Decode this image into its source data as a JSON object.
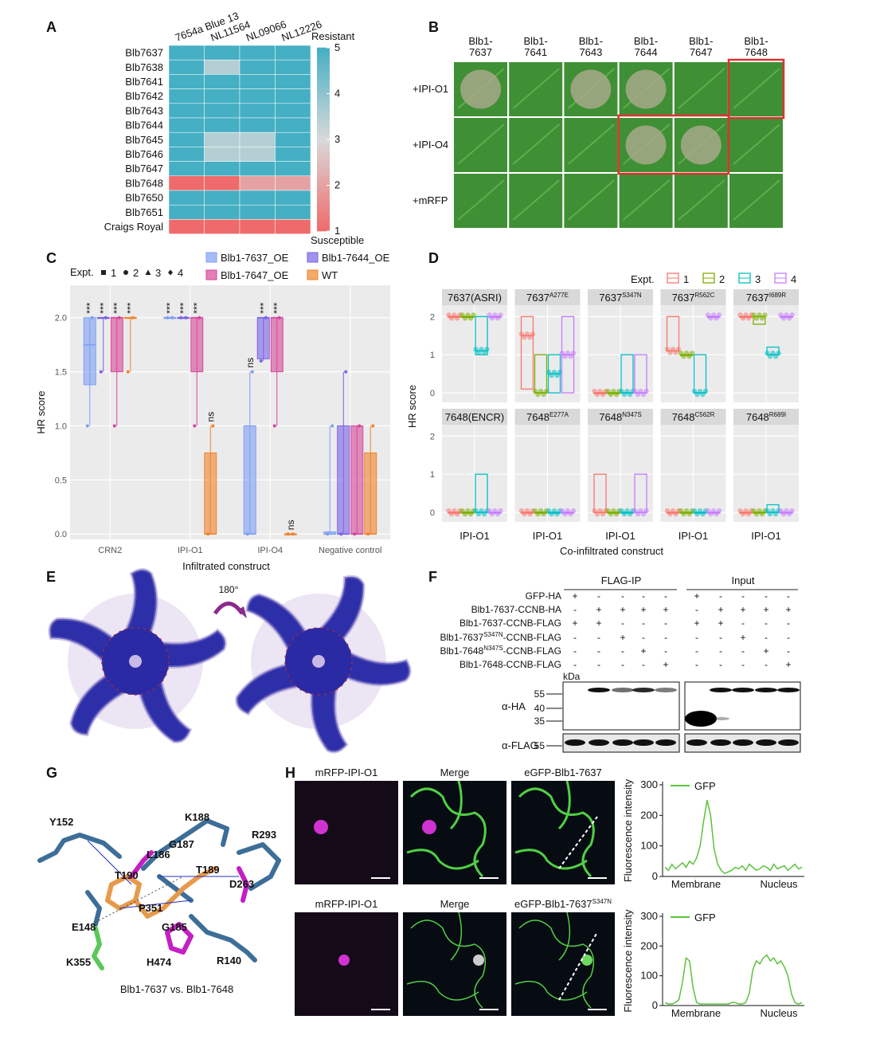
{
  "panels": {
    "A": {
      "label": "A",
      "columns": [
        "7654a Blue 13",
        "NL11564",
        "NL09066",
        "NL12226"
      ],
      "rows": [
        "Blb7637",
        "Blb7638",
        "Blb7641",
        "Blb7642",
        "Blb7643",
        "Blb7644",
        "Blb7645",
        "Blb7646",
        "Blb7647",
        "Blb7648",
        "Blb7650",
        "Blb7651",
        "Craigs Royal"
      ],
      "scores": [
        [
          5,
          5,
          5,
          5
        ],
        [
          5,
          3.5,
          5,
          5
        ],
        [
          5,
          5,
          5,
          5
        ],
        [
          5,
          5,
          5,
          5
        ],
        [
          5,
          5,
          5,
          5
        ],
        [
          5,
          5,
          5,
          5
        ],
        [
          5,
          3.5,
          3.5,
          5
        ],
        [
          5,
          3.5,
          3.5,
          5
        ],
        [
          5,
          5,
          5,
          5
        ],
        [
          1,
          1,
          2,
          2
        ],
        [
          5,
          5,
          5,
          5
        ],
        [
          5,
          5,
          5,
          5
        ],
        [
          1,
          1,
          1,
          1
        ]
      ],
      "legend": {
        "top": "Resistant",
        "bottom": "Susceptible",
        "lim": [
          1,
          5
        ],
        "ticks": [
          5,
          4,
          3,
          2,
          1
        ],
        "colors": {
          "low": "#ef6a6a",
          "mid": "#d9d9d9",
          "high": "#45afc4"
        }
      }
    },
    "B": {
      "label": "B",
      "columns": [
        [
          "Blb1-",
          "7637"
        ],
        [
          "Blb1-",
          "7641"
        ],
        [
          "Blb1-",
          "7643"
        ],
        [
          "Blb1-",
          "7644"
        ],
        [
          "Blb1-",
          "7647"
        ],
        [
          "Blb1-",
          "7648"
        ]
      ],
      "rows": [
        "+IPI-O1",
        "+IPI-O4",
        "+mRFP"
      ]
    },
    "C": {
      "label": "C",
      "type": "box",
      "ylabel": "HR score",
      "xlabel": "Infiltrated construct",
      "categories": [
        "CRN2",
        "IPI-O1",
        "IPI-O4",
        "Negative control"
      ],
      "ylim": [
        -0.05,
        2.3
      ],
      "yticks": [
        {
          "value": 0,
          "label": "0.0"
        },
        0.5,
        {
          "value": 1,
          "label": "1.0"
        },
        1.5,
        {
          "value": 2,
          "label": "2.0"
        }
      ],
      "grid": true,
      "expt_legend": {
        "title": "Expt.",
        "items": [
          1,
          2,
          3,
          4
        ]
      },
      "series": [
        {
          "name": "Blb1-7637_OE",
          "color": "#7f9ff3",
          "stats": [
            [
              1,
              1.38,
              1.75,
              2,
              2
            ],
            [
              2,
              2,
              2,
              2,
              2
            ],
            [
              0,
              0,
              0,
              1,
              1.5
            ],
            [
              0,
              0,
              0,
              0.02,
              1
            ]
          ],
          "annotations": [
            "***",
            "***",
            "ns",
            null
          ]
        },
        {
          "name": "Blb1-7644_OE",
          "color": "#7a62e6",
          "stats": [
            [
              1.5,
              2,
              2,
              2,
              2
            ],
            [
              2,
              2,
              2,
              2,
              2
            ],
            [
              1.6,
              1.62,
              2,
              2,
              2
            ],
            [
              0,
              0,
              0,
              1,
              1.5
            ]
          ],
          "annotations": [
            "***",
            "***",
            "***",
            null
          ]
        },
        {
          "name": "Blb1-7647_OE",
          "color": "#d6479a",
          "stats": [
            [
              1,
              1.5,
              2,
              2,
              2
            ],
            [
              1,
              1.5,
              2,
              2,
              2
            ],
            [
              1,
              1.5,
              2,
              2,
              2
            ],
            [
              0,
              0,
              0,
              1,
              1
            ]
          ],
          "annotations": [
            "***",
            "***",
            "***",
            null
          ]
        },
        {
          "name": "WT",
          "color": "#f0842e",
          "stats": [
            [
              1.5,
              2,
              2,
              2,
              2
            ],
            [
              0,
              0,
              0,
              0.75,
              1
            ],
            [
              0,
              0,
              0,
              0,
              0
            ],
            [
              0,
              0,
              0,
              0.75,
              1
            ]
          ],
          "annotations": [
            "***",
            "ns",
            "ns",
            null
          ]
        }
      ]
    },
    "D": {
      "label": "D",
      "type": "box",
      "ylabel": "HR score",
      "xlabel": "Co-infiltrated construct",
      "xcategory": "IPI-O1",
      "ylim": [
        -0.25,
        2.3
      ],
      "yticks": [
        0,
        1,
        2
      ],
      "expt_legend": {
        "title": "Expt.",
        "items": [
          1,
          2,
          3,
          4
        ],
        "colors": [
          "#f8766d",
          "#7cae00",
          "#00bfc4",
          "#c77cff"
        ]
      },
      "subplots": [
        {
          "title": {
            "pre": "7637(ASRI)"
          },
          "boxes": [
            [
              2,
              2,
              2
            ],
            [
              2,
              2,
              2
            ],
            [
              1,
              1.1,
              2
            ],
            [
              2,
              2,
              2
            ]
          ]
        },
        {
          "title": {
            "pre": "7637",
            "sup": "A277E"
          },
          "boxes": [
            [
              0.1,
              1.5,
              2
            ],
            [
              0,
              0,
              1
            ],
            [
              0,
              0.5,
              1
            ],
            [
              0,
              1,
              2
            ]
          ]
        },
        {
          "title": {
            "pre": "7637",
            "sup": "S347N"
          },
          "boxes": [
            [
              0,
              0,
              0
            ],
            [
              0,
              0,
              0
            ],
            [
              0,
              0,
              1
            ],
            [
              0,
              0,
              1
            ]
          ]
        },
        {
          "title": {
            "pre": "7637",
            "sup": "R562C"
          },
          "boxes": [
            [
              1.1,
              1.1,
              2
            ],
            [
              1,
              1,
              1
            ],
            [
              0,
              0,
              1
            ],
            [
              2,
              2,
              2
            ]
          ]
        },
        {
          "title": {
            "pre": "7637",
            "sup": "I689R"
          },
          "boxes": [
            [
              2,
              2,
              2
            ],
            [
              1.8,
              2,
              2
            ],
            [
              1,
              1,
              1.2
            ],
            [
              2,
              2,
              2
            ]
          ]
        },
        {
          "title": {
            "pre": "7648(ENCR)"
          },
          "boxes": [
            [
              0,
              0,
              0
            ],
            [
              0,
              0,
              0
            ],
            [
              0,
              0,
              1
            ],
            [
              0,
              0,
              0
            ]
          ]
        },
        {
          "title": {
            "pre": "7648",
            "sup": "E277A"
          },
          "boxes": [
            [
              0,
              0,
              0
            ],
            [
              0,
              0,
              0
            ],
            [
              0,
              0,
              0
            ],
            [
              0,
              0,
              0
            ]
          ]
        },
        {
          "title": {
            "pre": "7648",
            "sup": "N347S"
          },
          "boxes": [
            [
              0,
              0,
              1
            ],
            [
              0,
              0,
              0
            ],
            [
              0,
              0,
              0
            ],
            [
              0,
              0,
              1
            ]
          ]
        },
        {
          "title": {
            "pre": "7648",
            "sup": "C562R"
          },
          "boxes": [
            [
              0,
              0,
              0
            ],
            [
              0,
              0,
              0
            ],
            [
              0,
              0,
              0
            ],
            [
              0,
              0,
              0
            ]
          ]
        },
        {
          "title": {
            "pre": "7648",
            "sup": "R689I"
          },
          "boxes": [
            [
              0,
              0,
              0
            ],
            [
              0,
              0,
              0
            ],
            [
              0,
              0,
              0.2
            ],
            [
              0,
              0,
              0
            ]
          ]
        }
      ]
    },
    "E": {
      "label": "E",
      "rotation": "180°"
    },
    "F": {
      "label": "F",
      "groups": [
        "FLAG-IP",
        "Input"
      ],
      "rows": [
        {
          "pre": "GFP-HA"
        },
        {
          "pre": "Blb1-7637-CCNB-HA"
        },
        {
          "pre": "Blb1-7637-CCNB-FLAG"
        },
        {
          "pre": "Blb1-7637",
          "sup": "S347N",
          "post": "-CCNB-FLAG"
        },
        {
          "pre": "Blb1-7648",
          "sup": "N347S",
          "post": "-CCNB-FLAG"
        },
        {
          "pre": "Blb1-7648-CCNB-FLAG"
        }
      ],
      "signs": [
        [
          "+",
          "-",
          "-",
          "-",
          "-",
          "+",
          "-",
          "-",
          "-",
          "-"
        ],
        [
          "-",
          "+",
          "+",
          "+",
          "+",
          "-",
          "+",
          "+",
          "+",
          "+"
        ],
        [
          "+",
          "+",
          "-",
          "-",
          "-",
          "+",
          "+",
          "-",
          "-",
          "-"
        ],
        [
          "-",
          "-",
          "+",
          "-",
          "-",
          "-",
          "-",
          "+",
          "-",
          "-"
        ],
        [
          "-",
          "-",
          "-",
          "+",
          "-",
          "-",
          "-",
          "-",
          "+",
          "-"
        ],
        [
          "-",
          "-",
          "-",
          "-",
          "+",
          "-",
          "-",
          "-",
          "-",
          "+"
        ]
      ],
      "unit": "kDa",
      "blots": [
        {
          "label": "α-HA",
          "markers": [
            55,
            40,
            35
          ]
        },
        {
          "label": "α-FLAG",
          "markers": [
            55
          ]
        }
      ]
    },
    "G": {
      "label": "G",
      "residues": [
        "Y152",
        "T190",
        "L186",
        "G187",
        "K188",
        "T189",
        "R293",
        "D263",
        "P351",
        "E148",
        "G185",
        "K355",
        "H474",
        "R140"
      ],
      "caption": "Blb1-7637 vs. Blb1-7648"
    },
    "H": {
      "label": "H",
      "rows": [
        {
          "titles": [
            {
              "pre": "mRFP-IPI-O1"
            },
            {
              "pre": "Merge"
            },
            {
              "pre": "eGFP-Blb1-7637"
            }
          ],
          "profile": {
            "ylabel": "Fluorescence intensity",
            "legend": "GFP",
            "color": "#5cc23f",
            "ylim": [
              0,
              300
            ],
            "yticks": [
              0,
              100,
              200,
              300
            ],
            "xlabels": [
              "Membrane",
              "Nucleus"
            ],
            "values": [
              30,
              20,
              40,
              25,
              35,
              45,
              30,
              50,
              40,
              60,
              100,
              180,
              250,
              200,
              90,
              40,
              20,
              10,
              15,
              20,
              30,
              25,
              35,
              20,
              40,
              30,
              20,
              25,
              35,
              30,
              20,
              40,
              25,
              30,
              35,
              20,
              30,
              40,
              25,
              30
            ]
          }
        },
        {
          "titles": [
            {
              "pre": "mRFP-IPI-O1"
            },
            {
              "pre": "Merge"
            },
            {
              "pre": "eGFP-Blb1-7637",
              "sup": "S347N"
            }
          ],
          "profile": {
            "ylabel": "Fluorescence intensity",
            "legend": "GFP",
            "color": "#5cc23f",
            "ylim": [
              0,
              300
            ],
            "yticks": [
              0,
              100,
              200,
              300
            ],
            "xlabels": [
              "Membrane",
              "Nucleus"
            ],
            "values": [
              10,
              5,
              5,
              10,
              20,
              80,
              160,
              150,
              60,
              10,
              5,
              5,
              5,
              5,
              5,
              5,
              5,
              5,
              5,
              10,
              10,
              5,
              5,
              10,
              40,
              120,
              150,
              140,
              160,
              170,
              150,
              160,
              140,
              150,
              130,
              100,
              40,
              10,
              5,
              10
            ]
          }
        }
      ]
    }
  }
}
